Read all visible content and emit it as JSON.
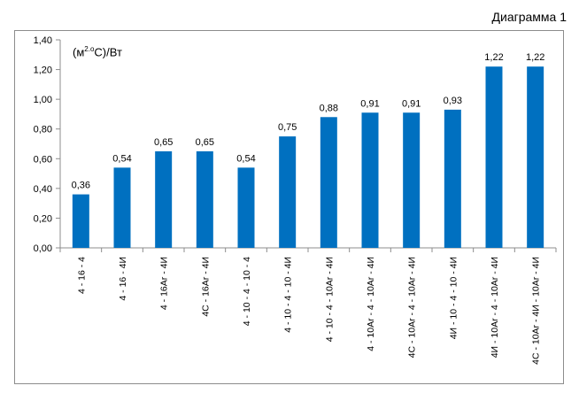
{
  "caption": "Диаграмма 1",
  "chart_data": {
    "type": "bar",
    "title": "",
    "ylabel": "(м²·°С)/Вт",
    "ylabel_parts": {
      "open": "(м",
      "sup": "2.o",
      "close": "С)/Вт"
    },
    "ylim": [
      0,
      1.4
    ],
    "ystep": 0.2,
    "yticks": [
      "0,00",
      "0,20",
      "0,40",
      "0,60",
      "0,80",
      "1,00",
      "1,20",
      "1,40"
    ],
    "grid": false,
    "categories": [
      "4 - 16 - 4",
      "4 - 16 - 4И",
      "4 - 16Ar - 4И",
      "4С - 16Ar - 4И",
      "4 - 10 - 4 - 10 - 4",
      "4 - 10 - 4 - 10 - 4И",
      "4 - 10 - 4 - 10Ar - 4И",
      "4 - 10Ar - 4 - 10Ar - 4И",
      "4С - 10Ar - 4 - 10Ar - 4И",
      "4И - 10 - 4 - 10 - 4И",
      "4И - 10Ar - 4 - 10Ar - 4И",
      "4С - 10Ar - 4И - 10Ar - 4И"
    ],
    "values": [
      0.36,
      0.54,
      0.65,
      0.65,
      0.54,
      0.75,
      0.88,
      0.91,
      0.91,
      0.93,
      1.22,
      1.22
    ],
    "value_labels": [
      "0,36",
      "0,54",
      "0,65",
      "0,65",
      "0,54",
      "0,75",
      "0,88",
      "0,91",
      "0,91",
      "0,93",
      "1,22",
      "1,22"
    ],
    "bar_color": "#0070C0",
    "axis_color": "#8c8c8c"
  }
}
